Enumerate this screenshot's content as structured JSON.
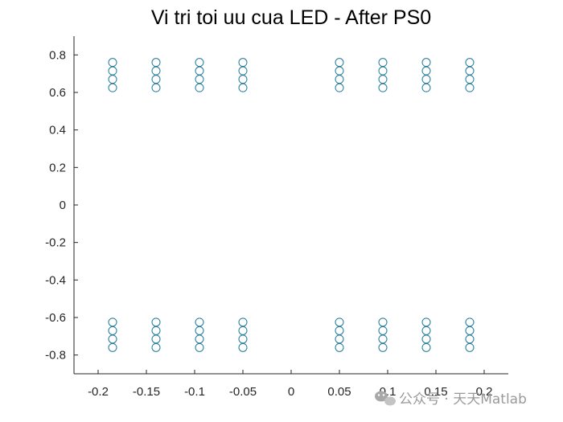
{
  "chart_data": {
    "type": "scatter",
    "title": "Vi tri toi uu cua LED - After PS0",
    "xlabel": "",
    "ylabel": "",
    "xlim": [
      -0.225,
      0.225
    ],
    "ylim": [
      -0.9,
      0.9
    ],
    "xticks": [
      -0.2,
      -0.15,
      -0.1,
      -0.05,
      0,
      0.05,
      0.1,
      0.15,
      0.2
    ],
    "xtick_labels": [
      "-0.2",
      "-0.15",
      "-0.1",
      "-0.05",
      "0",
      "0.05",
      "0.1",
      "0.15",
      "0.2"
    ],
    "yticks": [
      -0.8,
      -0.6,
      -0.4,
      -0.2,
      0,
      0.2,
      0.4,
      0.6,
      0.8
    ],
    "ytick_labels": [
      "-0.8",
      "-0.6",
      "-0.4",
      "-0.2",
      "0",
      "0.2",
      "0.4",
      "0.6",
      "0.8"
    ],
    "grid": false,
    "marker": "open-circle",
    "marker_color": "#1f7a99",
    "axis_color": "#262626",
    "x_columns": [
      -0.185,
      -0.14,
      -0.095,
      -0.05,
      0.05,
      0.095,
      0.14,
      0.185
    ],
    "y_rows": [
      0.76,
      0.715,
      0.67,
      0.625,
      -0.625,
      -0.67,
      -0.715,
      -0.76
    ]
  },
  "watermark": {
    "icon": "wechat-icon",
    "text": "公众号 · 天天Matlab"
  }
}
